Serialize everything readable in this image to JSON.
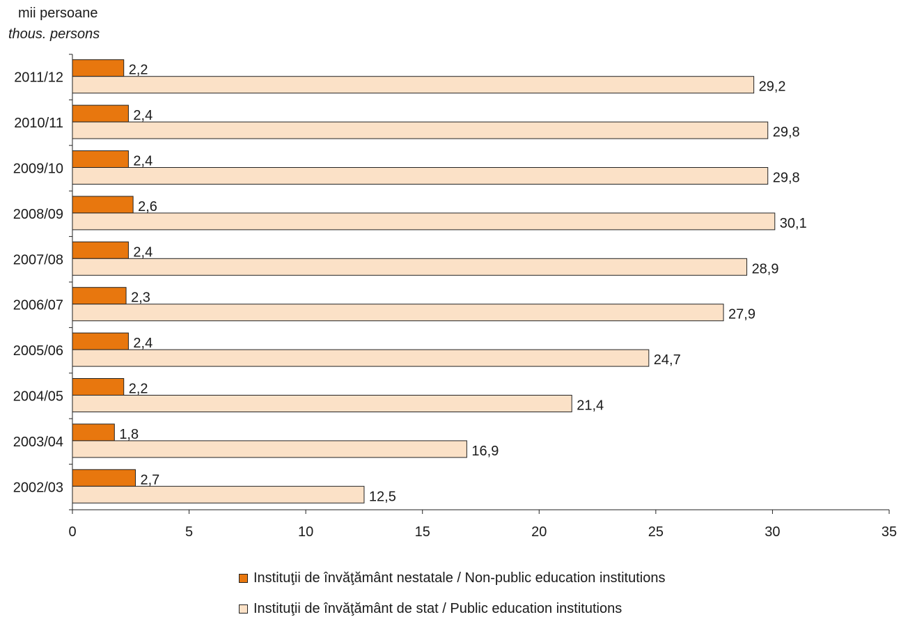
{
  "chart_data": {
    "type": "bar",
    "orientation": "horizontal",
    "unit_label": {
      "ro": "mii persoane",
      "en": "thous. persons"
    },
    "categories": [
      "2011/12",
      "2010/11",
      "2009/10",
      "2008/09",
      "2007/08",
      "2006/07",
      "2005/06",
      "2004/05",
      "2003/04",
      "2002/03"
    ],
    "series": [
      {
        "name": "Instituţii de învăţământ nestatale / Non-public education institutions",
        "color": "#e8770e",
        "values": [
          2.2,
          2.4,
          2.4,
          2.6,
          2.4,
          2.3,
          2.4,
          2.2,
          1.8,
          2.7
        ],
        "labels": [
          "2,2",
          "2,4",
          "2,4",
          "2,6",
          "2,4",
          "2,3",
          "2,4",
          "2,2",
          "1,8",
          "2,7"
        ]
      },
      {
        "name": "Instituţii de învăţământ de stat / Public education institutions",
        "color": "#fbe1c7",
        "values": [
          29.2,
          29.8,
          29.8,
          30.1,
          28.9,
          27.9,
          24.7,
          21.4,
          16.9,
          12.5
        ],
        "labels": [
          "29,2",
          "29,8",
          "29,8",
          "30,1",
          "28,9",
          "27,9",
          "24,7",
          "21,4",
          "16,9",
          "12,5"
        ]
      }
    ],
    "xlim": [
      0,
      35
    ],
    "xticks": [
      0,
      5,
      10,
      15,
      20,
      25,
      30,
      35
    ],
    "grid": false,
    "legend_position": "bottom"
  }
}
